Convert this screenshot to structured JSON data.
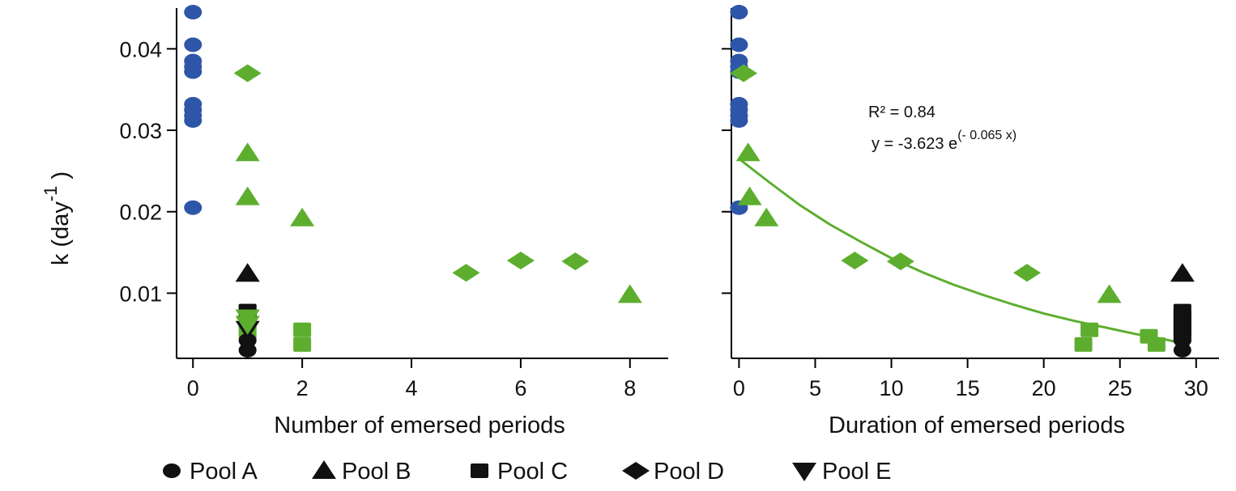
{
  "chart_data": [
    {
      "type": "scatter",
      "xlabel": "Number of emersed periods",
      "ylabel": "k (day",
      "ylabel_superscript": "-1",
      "xlim": [
        -0.3,
        8.7
      ],
      "ylim": [
        0.002,
        0.045
      ],
      "xticks": [
        "0",
        "2",
        "4",
        "6",
        "8"
      ],
      "xtick_values": [
        0,
        2,
        4,
        6,
        8
      ],
      "yticks": [
        "0.01",
        "0.02",
        "0.03",
        "0.04"
      ],
      "ytick_values": [
        0.01,
        0.02,
        0.03,
        0.04
      ],
      "series": [
        {
          "name": "Pool A",
          "marker": "circle",
          "color": "#2E56A8",
          "points": [
            [
              0,
              0.0445
            ],
            [
              0,
              0.0405
            ],
            [
              0,
              0.0385
            ],
            [
              0,
              0.0378
            ],
            [
              0,
              0.0372
            ],
            [
              0,
              0.0332
            ],
            [
              0,
              0.0325
            ],
            [
              0,
              0.0318
            ],
            [
              0,
              0.0312
            ],
            [
              0,
              0.0205
            ],
            [
              1,
              0.0058
            ],
            [
              1,
              0.0042
            ],
            [
              1,
              0.003
            ]
          ]
        },
        {
          "name": "Pool B",
          "marker": "triangle-up",
          "color": "#5DAE2E",
          "points": [
            [
              1,
              0.0272
            ],
            [
              1,
              0.0218
            ],
            [
              2,
              0.0192
            ],
            [
              8,
              0.0098
            ],
            [
              1,
              0.0124
            ]
          ]
        },
        {
          "name": "Pool C",
          "marker": "square",
          "color": "#5DAE2E",
          "points": [
            [
              2,
              0.0055
            ],
            [
              2,
              0.0037
            ],
            [
              1,
              0.0078
            ],
            [
              1,
              0.0052
            ]
          ]
        },
        {
          "name": "Pool D",
          "marker": "diamond",
          "color": "#5DAE2E",
          "points": [
            [
              1,
              0.037
            ],
            [
              5,
              0.0125
            ],
            [
              6,
              0.014
            ],
            [
              7,
              0.0139
            ]
          ]
        },
        {
          "name": "Pool E",
          "marker": "triangle-down",
          "color": "#5DAE2E",
          "points": [
            [
              1,
              0.007
            ],
            [
              1,
              0.0062
            ]
          ]
        }
      ]
    },
    {
      "type": "scatter",
      "xlabel": "Duration of emersed periods",
      "xlim": [
        -0.5,
        31.5
      ],
      "ylim": [
        0.002,
        0.045
      ],
      "xticks": [
        "0",
        "5",
        "10",
        "15",
        "20",
        "25",
        "30"
      ],
      "xtick_values": [
        0,
        5,
        10,
        15,
        20,
        25,
        30
      ],
      "yticks": [
        "0.01",
        "0.02",
        "0.03",
        "0.04"
      ],
      "ytick_values": [
        0.01,
        0.02,
        0.03,
        0.04
      ],
      "annotations": [
        "R² = 0.84",
        "y = -3.623 e"
      ],
      "annotation_superscript": "(- 0.065 x)",
      "fit_color": "#5DAE2E",
      "fit_curve": [
        [
          0,
          0.0265
        ],
        [
          2,
          0.0236
        ],
        [
          4,
          0.0208
        ],
        [
          6,
          0.0184
        ],
        [
          8,
          0.0163
        ],
        [
          10,
          0.0143
        ],
        [
          12,
          0.0126
        ],
        [
          14,
          0.0111
        ],
        [
          16,
          0.0098
        ],
        [
          18,
          0.0086
        ],
        [
          20,
          0.0075
        ],
        [
          22,
          0.0066
        ],
        [
          24,
          0.0058
        ],
        [
          26,
          0.005
        ],
        [
          28,
          0.0043
        ],
        [
          29,
          0.0039
        ]
      ],
      "series": [
        {
          "name": "Pool A",
          "marker": "circle",
          "color": "#2E56A8",
          "points": [
            [
              0,
              0.0445
            ],
            [
              0,
              0.0405
            ],
            [
              0,
              0.0385
            ],
            [
              0,
              0.0378
            ],
            [
              0,
              0.0372
            ],
            [
              0,
              0.0332
            ],
            [
              0,
              0.0325
            ],
            [
              0,
              0.0318
            ],
            [
              0,
              0.0312
            ],
            [
              0,
              0.0205
            ]
          ]
        },
        {
          "name": "Pool B",
          "marker": "triangle-up",
          "color": "#5DAE2E",
          "points": [
            [
              0.6,
              0.0272
            ],
            [
              0.7,
              0.0218
            ],
            [
              1.8,
              0.0192
            ],
            [
              24.3,
              0.0098
            ]
          ]
        },
        {
          "name": "Pool C",
          "marker": "square",
          "color": "#5DAE2E",
          "points": [
            [
              23.0,
              0.0055
            ],
            [
              22.6,
              0.0037
            ],
            [
              26.9,
              0.0047
            ],
            [
              27.4,
              0.0037
            ]
          ]
        },
        {
          "name": "Pool D",
          "marker": "diamond",
          "color": "#5DAE2E",
          "points": [
            [
              0.3,
              0.037
            ],
            [
              7.6,
              0.014
            ],
            [
              10.6,
              0.0139
            ],
            [
              18.9,
              0.0125
            ]
          ]
        },
        {
          "name": "Pool B (black)",
          "marker": "triangle-up",
          "color": "#111111",
          "points": [
            [
              29.1,
              0.0124
            ]
          ]
        },
        {
          "name": "Pool C (black)",
          "marker": "square",
          "color": "#111111",
          "points": [
            [
              29.1,
              0.0078
            ],
            [
              29.1,
              0.007
            ],
            [
              29.1,
              0.0062
            ],
            [
              29.1,
              0.0055
            ],
            [
              29.1,
              0.0048
            ]
          ]
        },
        {
          "name": "Pool A (black)",
          "marker": "circle",
          "color": "#111111",
          "points": [
            [
              29.1,
              0.0042
            ],
            [
              29.1,
              0.003
            ]
          ]
        }
      ]
    }
  ],
  "legend": {
    "placement": "bottom",
    "items": [
      {
        "label": "Pool A",
        "marker": "circle"
      },
      {
        "label": "Pool B",
        "marker": "triangle-up"
      },
      {
        "label": "Pool C",
        "marker": "square"
      },
      {
        "label": "Pool D",
        "marker": "diamond"
      },
      {
        "label": "Pool E",
        "marker": "triangle-down"
      }
    ]
  },
  "extra_black_points_left": {
    "color": "#111111",
    "points": [
      [
        1,
        0.0124,
        "triangle-up"
      ],
      [
        1,
        0.0078,
        "square"
      ],
      [
        1,
        0.007,
        "square"
      ],
      [
        1,
        0.0056,
        "triangle-down"
      ],
      [
        1,
        0.0042,
        "circle"
      ],
      [
        1,
        0.003,
        "circle"
      ]
    ]
  }
}
